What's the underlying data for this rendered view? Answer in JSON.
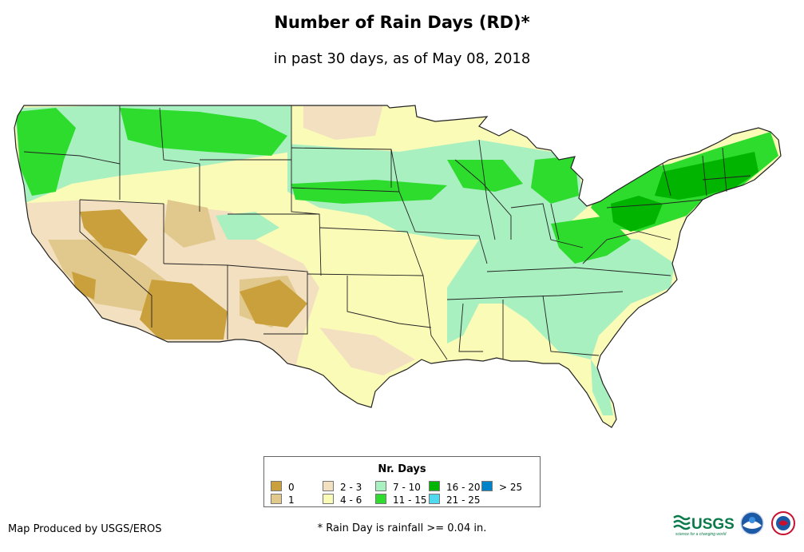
{
  "title": "Number of Rain Days (RD)*",
  "subtitle": "in past 30 days, as of May 08, 2018",
  "legend": {
    "title": "Nr. Days",
    "items": [
      {
        "label": "0",
        "color": "#c9a03c"
      },
      {
        "label": "1",
        "color": "#e1c88c"
      },
      {
        "label": "2 - 3",
        "color": "#f3e0c0"
      },
      {
        "label": "4 - 6",
        "color": "#fbfbb8"
      },
      {
        "label": "7 - 10",
        "color": "#a8f0c0"
      },
      {
        "label": "11 - 15",
        "color": "#2ddc2d"
      },
      {
        "label": "16 - 20",
        "color": "#00b400"
      },
      {
        "label": "21 - 25",
        "color": "#50d8ee"
      },
      {
        "label": "> 25",
        "color": "#0082c8"
      }
    ]
  },
  "credit": "Map Produced by USGS/EROS",
  "footnote": "* Rain Day is rainfall >= 0.04 in.",
  "logos": {
    "usgs_text": "USGS",
    "usgs_tagline": "science for a changing world",
    "icons": [
      "usgs-logo",
      "noaa-logo",
      "national-weather-service-logo"
    ]
  }
}
